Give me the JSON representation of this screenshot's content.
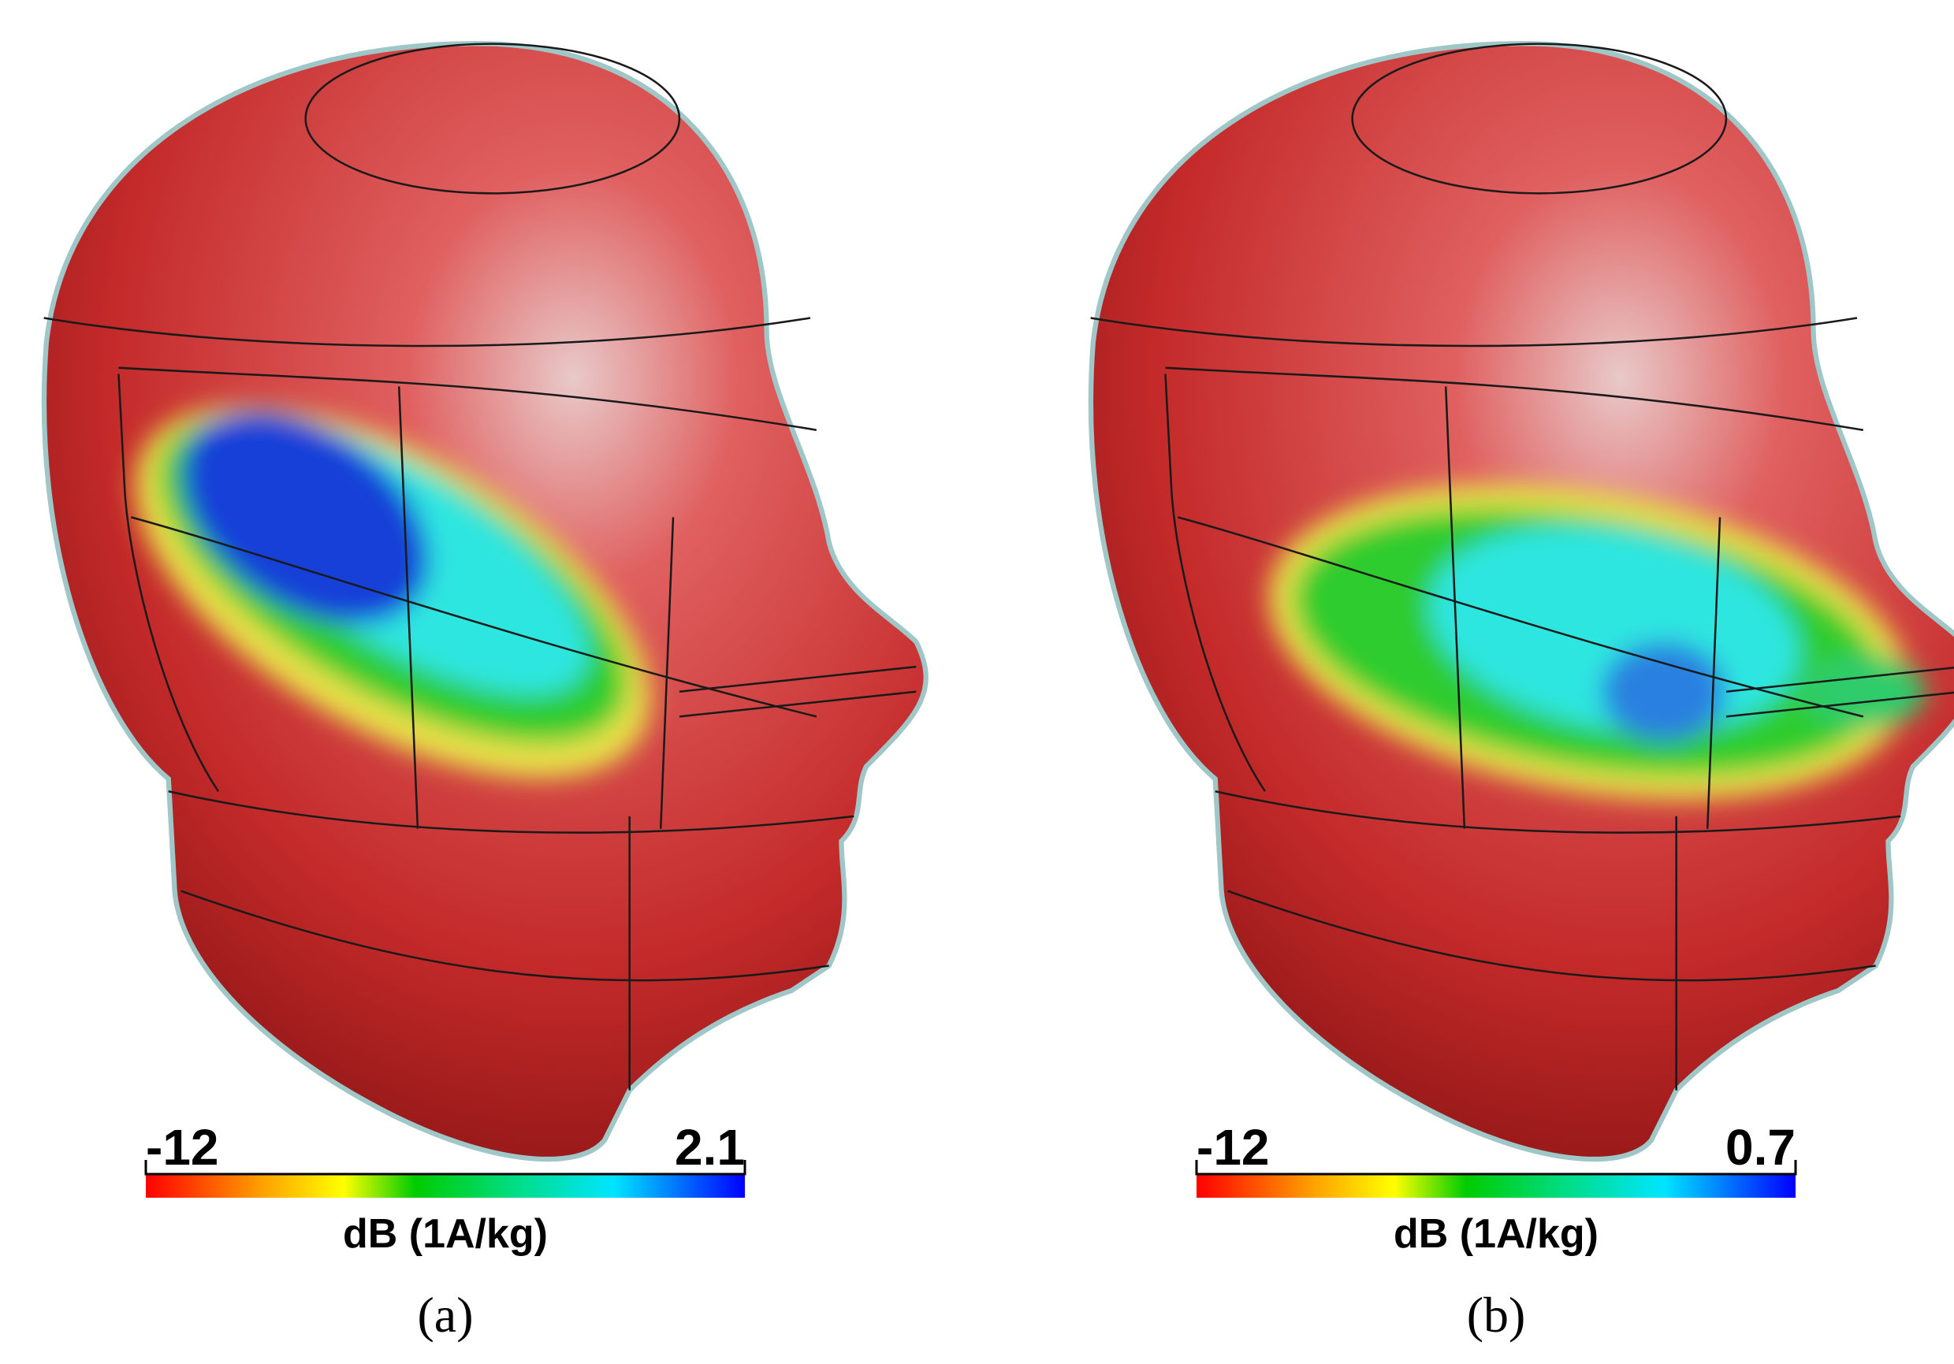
{
  "panels": [
    {
      "colorbar": {
        "min": -12,
        "max": 2.1,
        "unit": "dB (1A/kg)"
      },
      "caption": "(a)"
    },
    {
      "colorbar": {
        "min": -12,
        "max": 0.7,
        "unit": "dB (1A/kg)"
      },
      "caption": "(b)"
    }
  ]
}
